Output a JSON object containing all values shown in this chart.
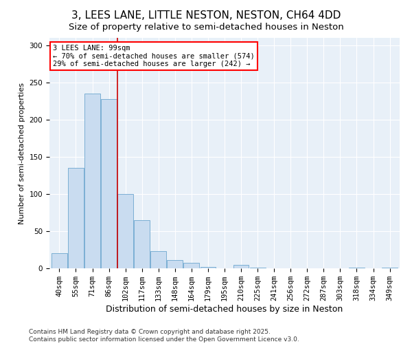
{
  "title1": "3, LEES LANE, LITTLE NESTON, NESTON, CH64 4DD",
  "title2": "Size of property relative to semi-detached houses in Neston",
  "xlabel": "Distribution of semi-detached houses by size in Neston",
  "ylabel": "Number of semi-detached properties",
  "bar_color": "#c9dcf0",
  "bar_edge_color": "#7bafd4",
  "categories": [
    "40sqm",
    "55sqm",
    "71sqm",
    "86sqm",
    "102sqm",
    "117sqm",
    "133sqm",
    "148sqm",
    "164sqm",
    "179sqm",
    "195sqm",
    "210sqm",
    "225sqm",
    "241sqm",
    "256sqm",
    "272sqm",
    "287sqm",
    "303sqm",
    "318sqm",
    "334sqm",
    "349sqm"
  ],
  "values": [
    20,
    135,
    235,
    228,
    100,
    65,
    23,
    11,
    7,
    2,
    0,
    5,
    1,
    0,
    0,
    0,
    0,
    0,
    1,
    0,
    1
  ],
  "annotation_title": "3 LEES LANE: 99sqm",
  "annotation_line1": "← 70% of semi-detached houses are smaller (574)",
  "annotation_line2": "29% of semi-detached houses are larger (242) →",
  "vline_color": "#cc0000",
  "vline_x": 3.5,
  "ylim": [
    0,
    310
  ],
  "yticks": [
    0,
    50,
    100,
    150,
    200,
    250,
    300
  ],
  "footer1": "Contains HM Land Registry data © Crown copyright and database right 2025.",
  "footer2": "Contains public sector information licensed under the Open Government Licence v3.0.",
  "fig_bg_color": "#ffffff",
  "plot_bg_color": "#e8f0f8",
  "grid_color": "#ffffff",
  "title_fontsize": 11,
  "subtitle_fontsize": 9.5,
  "ylabel_fontsize": 8,
  "xlabel_fontsize": 9,
  "tick_fontsize": 7.5,
  "ann_fontsize": 7.5,
  "footer_fontsize": 6.5
}
